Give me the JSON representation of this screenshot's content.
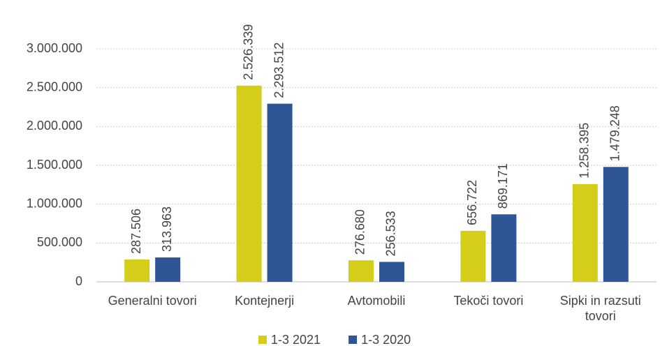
{
  "chart_data": {
    "type": "bar",
    "categories": [
      "Generalni tovori",
      "Kontejnerji",
      "Avtomobili",
      "Tekoči tovori",
      "Sipki in razsuti tovori"
    ],
    "series": [
      {
        "name": "1-3 2021",
        "color": "#d4cd1a",
        "values": [
          287506,
          2526339,
          276680,
          656722,
          1258395
        ],
        "value_labels": [
          "287.506",
          "2.526.339",
          "276.680",
          "656.722",
          "1.258.395"
        ]
      },
      {
        "name": "1-3 2020",
        "color": "#2e5596",
        "values": [
          313963,
          2293512,
          256533,
          869171,
          1479248
        ],
        "value_labels": [
          "313.963",
          "2.293.512",
          "256.533",
          "869.171",
          "1.479.248"
        ]
      }
    ],
    "ylim": [
      0,
      3000000
    ],
    "yticks": [
      0,
      {
        "value": 500000,
        "label": "500.000"
      },
      {
        "value": 1000000,
        "label": "1.000.000"
      },
      {
        "value": 1500000,
        "label": "1.500.000"
      },
      {
        "value": 2000000,
        "label": "2.000.000"
      },
      {
        "value": 2500000,
        "label": "2.500.000"
      },
      {
        "value": 3000000,
        "label": "3.000.000"
      }
    ],
    "grid": true,
    "legend": "bottom"
  }
}
